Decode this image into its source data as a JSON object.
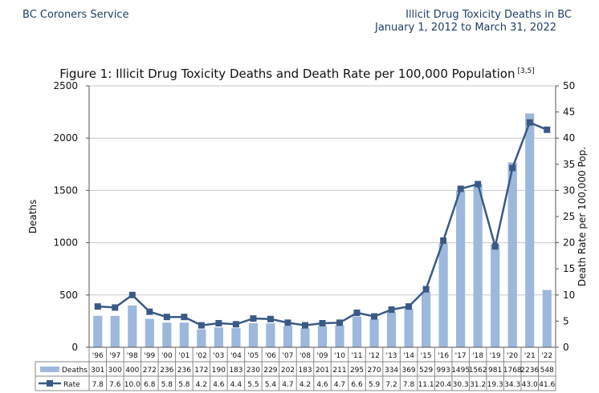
{
  "header": {
    "org": "BC Coroners Service",
    "report_title": "Illicit Drug Toxicity Deaths in BC",
    "date_range": "January 1, 2012 to March 31, 2022"
  },
  "colors": {
    "bar": "#9db8dc",
    "line": "#3a5a85",
    "grid": "#c8c8c8",
    "axis": "#555555"
  },
  "chart_data": {
    "type": "bar",
    "title": "Figure 1: Illicit Drug Toxicity Deaths and Death Rate per 100,000 Population",
    "title_superscript": "[3,5]",
    "categories": [
      "'96",
      "'97",
      "'98",
      "'99",
      "'00",
      "'01",
      "'02",
      "'03",
      "'04",
      "'05",
      "'06",
      "'07",
      "'08",
      "'09",
      "'10",
      "'11",
      "'12",
      "'13",
      "'14",
      "'15",
      "'16",
      "'17",
      "'18",
      "'19",
      "'20",
      "'21",
      "'22"
    ],
    "ylabel": "Deaths",
    "y2label": "Death Rate per 100,000 Pop.",
    "ylim": [
      0,
      2500
    ],
    "y2lim": [
      0,
      50
    ],
    "yticks": [
      "0",
      "500",
      "1000",
      "1500",
      "2000",
      "2500"
    ],
    "y2ticks": [
      "0",
      "5",
      "10",
      "15",
      "20",
      "25",
      "30",
      "35",
      "40",
      "45",
      "50"
    ],
    "grid": true,
    "series": [
      {
        "name": "Deaths",
        "type": "bar",
        "values": [
          301,
          300,
          400,
          272,
          236,
          236,
          172,
          190,
          183,
          230,
          229,
          202,
          183,
          201,
          211,
          295,
          270,
          334,
          369,
          529,
          993,
          1495,
          1562,
          981,
          1768,
          2236,
          548
        ],
        "labels": [
          "301",
          "300",
          "400",
          "272",
          "236",
          "236",
          "172",
          "190",
          "183",
          "230",
          "229",
          "202",
          "183",
          "201",
          "211",
          "295",
          "270",
          "334",
          "369",
          "529",
          "993",
          "1495",
          "1562",
          "981",
          "1768",
          "2236",
          "548"
        ]
      },
      {
        "name": "Rate",
        "type": "line",
        "axis": "right",
        "values": [
          7.8,
          7.6,
          10.0,
          6.8,
          5.8,
          5.8,
          4.2,
          4.6,
          4.4,
          5.5,
          5.4,
          4.7,
          4.2,
          4.6,
          4.7,
          6.6,
          5.9,
          7.2,
          7.8,
          11.1,
          20.4,
          30.3,
          31.2,
          19.3,
          34.3,
          43.0,
          41.6
        ],
        "labels": [
          "7.8",
          "7.6",
          "10.0",
          "6.8",
          "5.8",
          "5.8",
          "4.2",
          "4.6",
          "4.4",
          "5.5",
          "5.4",
          "4.7",
          "4.2",
          "4.6",
          "4.7",
          "6.6",
          "5.9",
          "7.2",
          "7.8",
          "11.1",
          "20.4",
          "30.3",
          "31.2",
          "19.3",
          "34.3",
          "43.0",
          "41.6"
        ]
      }
    ]
  }
}
